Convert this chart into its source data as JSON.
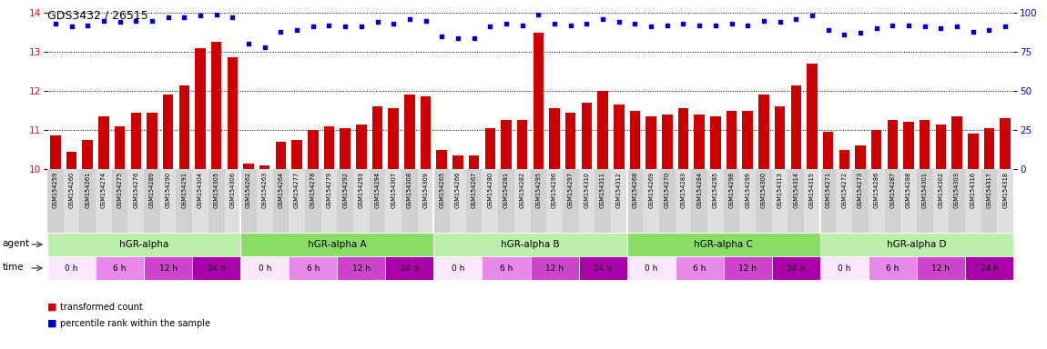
{
  "title": "GDS3432 / 26515",
  "samples": [
    "GSM154259",
    "GSM154260",
    "GSM154261",
    "GSM154274",
    "GSM154275",
    "GSM154276",
    "GSM154289",
    "GSM154290",
    "GSM154291",
    "GSM154304",
    "GSM154305",
    "GSM154306",
    "GSM154262",
    "GSM154263",
    "GSM154264",
    "GSM154277",
    "GSM154278",
    "GSM154279",
    "GSM154292",
    "GSM154293",
    "GSM154294",
    "GSM154307",
    "GSM154308",
    "GSM154309",
    "GSM154265",
    "GSM154266",
    "GSM154267",
    "GSM154280",
    "GSM154281",
    "GSM154282",
    "GSM154295",
    "GSM154296",
    "GSM154297",
    "GSM154310",
    "GSM154311",
    "GSM154312",
    "GSM154268",
    "GSM154269",
    "GSM154270",
    "GSM154283",
    "GSM154284",
    "GSM154285",
    "GSM154298",
    "GSM154299",
    "GSM154300",
    "GSM154313",
    "GSM154314",
    "GSM154315",
    "GSM154271",
    "GSM154272",
    "GSM154273",
    "GSM154286",
    "GSM154287",
    "GSM154288",
    "GSM154301",
    "GSM154302",
    "GSM154303",
    "GSM154316",
    "GSM154317",
    "GSM154318"
  ],
  "bar_values": [
    10.85,
    10.45,
    10.75,
    11.35,
    11.1,
    11.45,
    11.45,
    11.9,
    12.15,
    13.1,
    13.25,
    12.85,
    10.15,
    10.1,
    10.7,
    10.75,
    11.0,
    11.1,
    11.05,
    11.15,
    11.6,
    11.55,
    11.9,
    11.85,
    10.5,
    10.35,
    10.35,
    11.05,
    11.25,
    11.25,
    13.5,
    11.55,
    11.45,
    11.7,
    12.0,
    11.65,
    11.5,
    11.35,
    11.4,
    11.55,
    11.4,
    11.35,
    11.5,
    11.5,
    11.9,
    11.6,
    12.15,
    12.7,
    10.95,
    10.5,
    10.6,
    11.0,
    11.25,
    11.2,
    11.25,
    11.15,
    11.35,
    10.9,
    11.05,
    11.3
  ],
  "percentile_values": [
    93,
    91,
    92,
    95,
    94,
    95,
    95,
    97,
    97,
    98,
    99,
    97,
    80,
    78,
    88,
    89,
    91,
    92,
    91,
    91,
    94,
    93,
    96,
    95,
    85,
    84,
    84,
    91,
    93,
    92,
    99,
    93,
    92,
    93,
    96,
    94,
    93,
    91,
    92,
    93,
    92,
    92,
    93,
    92,
    95,
    94,
    96,
    98,
    89,
    86,
    87,
    90,
    92,
    92,
    91,
    90,
    91,
    88,
    89,
    91
  ],
  "agents": [
    "hGR-alpha",
    "hGR-alpha A",
    "hGR-alpha B",
    "hGR-alpha C",
    "hGR-alpha D"
  ],
  "time_labels": [
    "0 h",
    "6 h",
    "12 h",
    "24 h"
  ],
  "time_colors": [
    "#fce8fc",
    "#e888e8",
    "#cc44cc",
    "#aa00aa"
  ],
  "agent_color_even": "#bbeeaa",
  "agent_color_odd": "#88dd66",
  "ylim_left": [
    10,
    14
  ],
  "ylim_right": [
    0,
    100
  ],
  "yticks_left": [
    10,
    11,
    12,
    13,
    14
  ],
  "yticks_right": [
    0,
    25,
    50,
    75,
    100
  ],
  "bar_color": "#cc0000",
  "dot_color": "#0000cc",
  "bar_bottom": 10,
  "background_color": "#ffffff",
  "legend_items": [
    "transformed count",
    "percentile rank within the sample"
  ]
}
